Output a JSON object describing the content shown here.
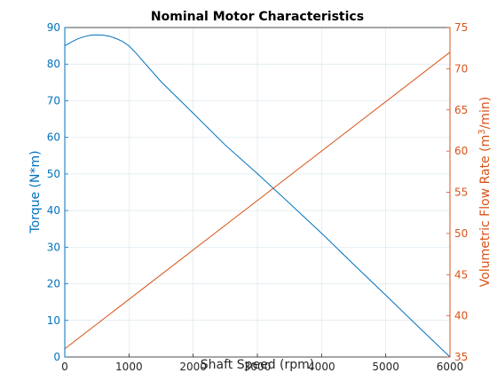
{
  "chart_data": {
    "type": "line",
    "title": "Nominal Motor Characteristics",
    "xlabel": "Shaft Speed (rpm)",
    "ylabel_left": "Torque (N*m)",
    "ylabel_right": "Volumetric Flow Rate (m³/min)",
    "xlim": [
      0,
      6000
    ],
    "ylim_left": [
      0,
      90
    ],
    "ylim_right": [
      35,
      75
    ],
    "xticks": [
      0,
      1000,
      2000,
      3000,
      4000,
      5000,
      6000
    ],
    "yticks_left": [
      0,
      10,
      20,
      30,
      40,
      50,
      60,
      70,
      80,
      90
    ],
    "yticks_right": [
      35,
      40,
      45,
      50,
      55,
      60,
      65,
      70,
      75
    ],
    "grid": true,
    "series": [
      {
        "axis": "left",
        "color": "#0072bd",
        "x": [
          0,
          100,
          200,
          300,
          400,
          500,
          600,
          700,
          800,
          900,
          1000,
          1100,
          1200,
          1500,
          2000,
          2500,
          3000,
          3500,
          4000,
          4500,
          5000,
          5500,
          6000
        ],
        "y": [
          85.0,
          86.0,
          86.9,
          87.5,
          87.9,
          88.0,
          87.9,
          87.6,
          87.0,
          86.2,
          85.0,
          83.2,
          81.2,
          75.2,
          66.6,
          57.9,
          50.1,
          42.0,
          33.8,
          25.3,
          16.9,
          8.4,
          0.0
        ]
      },
      {
        "axis": "right",
        "color": "#d95319",
        "x": [
          0,
          6000
        ],
        "y": [
          36.0,
          72.0
        ]
      }
    ]
  }
}
